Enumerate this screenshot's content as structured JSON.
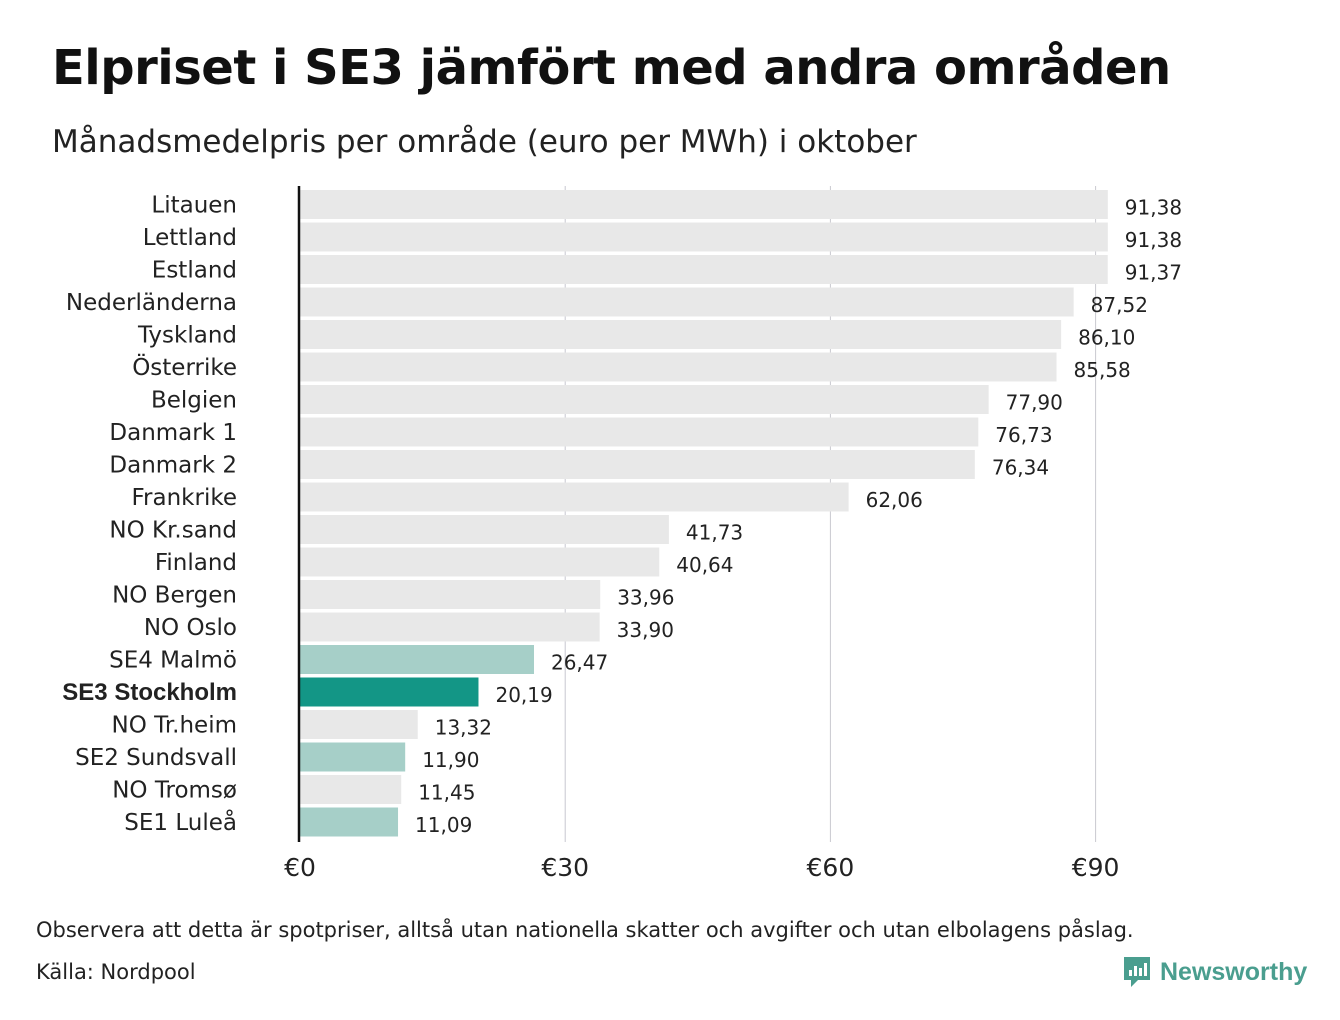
{
  "title": "Elpriset i SE3 jämfört med andra områden",
  "subtitle": "Månadsmedelpris per område (euro per MWh) i oktober",
  "footnote": "Observera att detta är spotpriser, alltså utan nationella skatter och avgifter och utan elbolagens påslag.",
  "source": "Källa: Nordpool",
  "brand": {
    "name": "Newsworthy",
    "icon": "newsworthy-logo-icon",
    "color": "#4a9e8f"
  },
  "colors": {
    "other": "#e8e8e8",
    "se_area": "#a6cfc8",
    "se3": "#139686",
    "axis": "#111111",
    "grid": "#c8c8d0"
  },
  "chart_data": {
    "type": "bar",
    "orientation": "horizontal",
    "title": "Elpriset i SE3 jämfört med andra områden",
    "subtitle": "Månadsmedelpris per område (euro per MWh) i oktober",
    "xlim": [
      0,
      100
    ],
    "x_ticks": [
      0,
      30,
      60,
      90
    ],
    "x_tick_labels": [
      "€0",
      "€30",
      "€60",
      "€90"
    ],
    "grid": "vertical",
    "categories": [
      "Litauen",
      "Lettland",
      "Estland",
      "Nederländerna",
      "Tyskland",
      "Österrike",
      "Belgien",
      "Danmark 1",
      "Danmark 2",
      "Frankrike",
      "NO Kr.sand",
      "Finland",
      "NO Bergen",
      "NO Oslo",
      "SE4 Malmö",
      "SE3 Stockholm",
      "NO Tr.heim",
      "SE2 Sundsvall",
      "NO Tromsø",
      "SE1 Luleå"
    ],
    "values": [
      91.38,
      91.38,
      91.37,
      87.52,
      86.1,
      85.58,
      77.9,
      76.73,
      76.34,
      62.06,
      41.73,
      40.64,
      33.96,
      33.9,
      26.47,
      20.19,
      13.32,
      11.9,
      11.45,
      11.09
    ],
    "value_labels": [
      "91,38",
      "91,38",
      "91,37",
      "87,52",
      "86,10",
      "85,58",
      "77,90",
      "76,73",
      "76,34",
      "62,06",
      "41,73",
      "40,64",
      "33,96",
      "33,90",
      "26,47",
      "20,19",
      "13,32",
      "11,90",
      "11,45",
      "11,09"
    ],
    "highlight": [
      "other",
      "other",
      "other",
      "other",
      "other",
      "other",
      "other",
      "other",
      "other",
      "other",
      "other",
      "other",
      "other",
      "other",
      "se_area",
      "se3",
      "other",
      "se_area",
      "other",
      "se_area"
    ]
  }
}
